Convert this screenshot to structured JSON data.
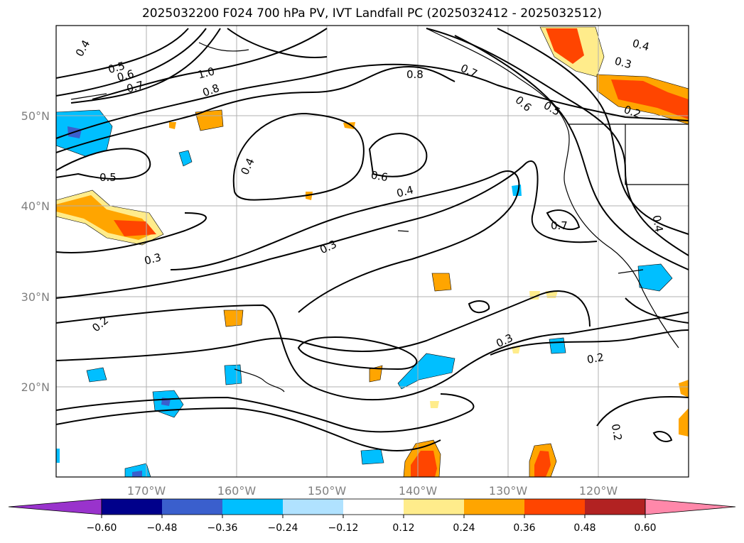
{
  "title": "2025032200 F024 700 hPa PV, IVT Landfall PC (2025032412 - 2025032512)",
  "lon_ticks": [
    {
      "label": "170°W",
      "lon": -170
    },
    {
      "label": "160°W",
      "lon": -160
    },
    {
      "label": "150°W",
      "lon": -150
    },
    {
      "label": "140°W",
      "lon": -140
    },
    {
      "label": "130°W",
      "lon": -130
    },
    {
      "label": "120°W",
      "lon": -120
    }
  ],
  "lat_ticks": [
    {
      "label": "50°N",
      "lat": 50
    },
    {
      "label": "40°N",
      "lat": 40
    },
    {
      "label": "30°N",
      "lat": 30
    },
    {
      "label": "20°N",
      "lat": 20
    }
  ],
  "contour_labels": [
    "0.4",
    "0.5",
    "0.6",
    "0.7",
    "1.0",
    "0.8",
    "0.8",
    "0.7",
    "0.6",
    "0.5",
    "0.4",
    "0.3",
    "0.2",
    "0.4",
    "0.6",
    "0.4",
    "0.5",
    "0.3",
    "0.3",
    "0.7",
    "0.2",
    "0.3",
    "0.2",
    "0.2",
    "0.4"
  ],
  "colorbar": {
    "tick_labels": [
      "−0.60",
      "−0.48",
      "−0.36",
      "−0.24",
      "−0.12",
      "0.12",
      "0.24",
      "0.36",
      "0.48",
      "0.60"
    ],
    "colors": [
      "#9933cc",
      "#00008b",
      "#3a5fcd",
      "#00bfff",
      "#b0e2ff",
      "#ffffff",
      "#ffec8b",
      "#ffa500",
      "#ff4500",
      "#b22222",
      "#ff88aa"
    ]
  }
}
